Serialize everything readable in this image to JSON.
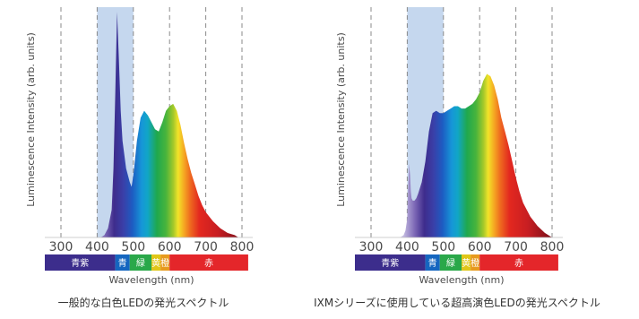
{
  "chart_data": [
    {
      "type": "area",
      "caption": "一般的な白色LEDの発光スペクトル",
      "xlabel": "Wavelength (nm)",
      "ylabel": "Luminescence Intensity (arb. units)",
      "xlim": [
        300,
        800
      ],
      "ylim": [
        0,
        1
      ],
      "xticks": [
        300,
        400,
        500,
        600,
        700,
        800
      ],
      "highlight_band": [
        400,
        500
      ],
      "grid": "vertical dashed lines at each x tick",
      "legend": "none",
      "color_bar": [
        {
          "label": "青紫",
          "from": 300,
          "to": 450,
          "color": "#3c2d8c"
        },
        {
          "label": "青",
          "from": 450,
          "to": 490,
          "color": "#1566c0"
        },
        {
          "label": "緑",
          "from": 490,
          "to": 550,
          "color": "#2aa84a"
        },
        {
          "label": "黄",
          "from": 550,
          "to": 575,
          "color": "#e0c619"
        },
        {
          "label": "橙",
          "from": 575,
          "to": 600,
          "color": "#e79a1e"
        },
        {
          "label": "赤",
          "from": 600,
          "to": 780,
          "color": "#e4262a"
        }
      ],
      "series": [
        {
          "x": [
            410,
            420,
            430,
            440,
            445,
            450,
            455,
            460,
            465,
            470,
            480,
            490,
            495,
            500,
            510,
            520,
            530,
            540,
            550,
            560,
            570,
            580,
            590,
            600,
            610,
            620,
            630,
            640,
            650,
            660,
            670,
            680,
            690,
            700,
            720,
            740,
            760,
            780,
            790
          ],
          "y": [
            0.0,
            0.01,
            0.04,
            0.12,
            0.3,
            0.62,
            0.98,
            0.78,
            0.55,
            0.42,
            0.3,
            0.24,
            0.22,
            0.27,
            0.42,
            0.52,
            0.55,
            0.53,
            0.5,
            0.47,
            0.46,
            0.5,
            0.55,
            0.57,
            0.58,
            0.55,
            0.49,
            0.41,
            0.34,
            0.28,
            0.23,
            0.18,
            0.14,
            0.11,
            0.07,
            0.04,
            0.02,
            0.01,
            0.0
          ]
        }
      ]
    },
    {
      "type": "area",
      "caption": "IXMシリーズに使用している超高演色LEDの発光スペクトル",
      "xlabel": "Wavelength (nm)",
      "ylabel": "Luminescence Intensity (arb. units)",
      "xlim": [
        300,
        800
      ],
      "ylim": [
        0,
        1
      ],
      "xticks": [
        300,
        400,
        500,
        600,
        700,
        800
      ],
      "highlight_band": [
        400,
        500
      ],
      "grid": "vertical dashed lines at each x tick",
      "legend": "none",
      "color_bar": [
        {
          "label": "青紫",
          "from": 300,
          "to": 450,
          "color": "#3c2d8c"
        },
        {
          "label": "青",
          "from": 450,
          "to": 490,
          "color": "#1566c0"
        },
        {
          "label": "緑",
          "from": 490,
          "to": 550,
          "color": "#2aa84a"
        },
        {
          "label": "黄",
          "from": 550,
          "to": 575,
          "color": "#e0c619"
        },
        {
          "label": "橙",
          "from": 575,
          "to": 600,
          "color": "#e79a1e"
        },
        {
          "label": "赤",
          "from": 600,
          "to": 780,
          "color": "#e4262a"
        }
      ],
      "series": [
        {
          "x": [
            370,
            380,
            390,
            395,
            400,
            402,
            405,
            408,
            410,
            412,
            415,
            420,
            425,
            430,
            440,
            450,
            460,
            470,
            480,
            490,
            500,
            510,
            520,
            530,
            540,
            550,
            560,
            570,
            580,
            590,
            600,
            610,
            620,
            630,
            640,
            650,
            660,
            670,
            680,
            690,
            700,
            710,
            720,
            740,
            760,
            780,
            800
          ],
          "y": [
            0.0,
            0.0,
            0.01,
            0.03,
            0.08,
            0.2,
            0.32,
            0.27,
            0.2,
            0.17,
            0.16,
            0.16,
            0.17,
            0.19,
            0.24,
            0.33,
            0.46,
            0.54,
            0.55,
            0.54,
            0.54,
            0.55,
            0.56,
            0.57,
            0.57,
            0.56,
            0.56,
            0.57,
            0.58,
            0.6,
            0.63,
            0.68,
            0.71,
            0.7,
            0.66,
            0.6,
            0.52,
            0.46,
            0.4,
            0.33,
            0.26,
            0.2,
            0.15,
            0.09,
            0.05,
            0.02,
            0.0
          ]
        }
      ]
    }
  ]
}
